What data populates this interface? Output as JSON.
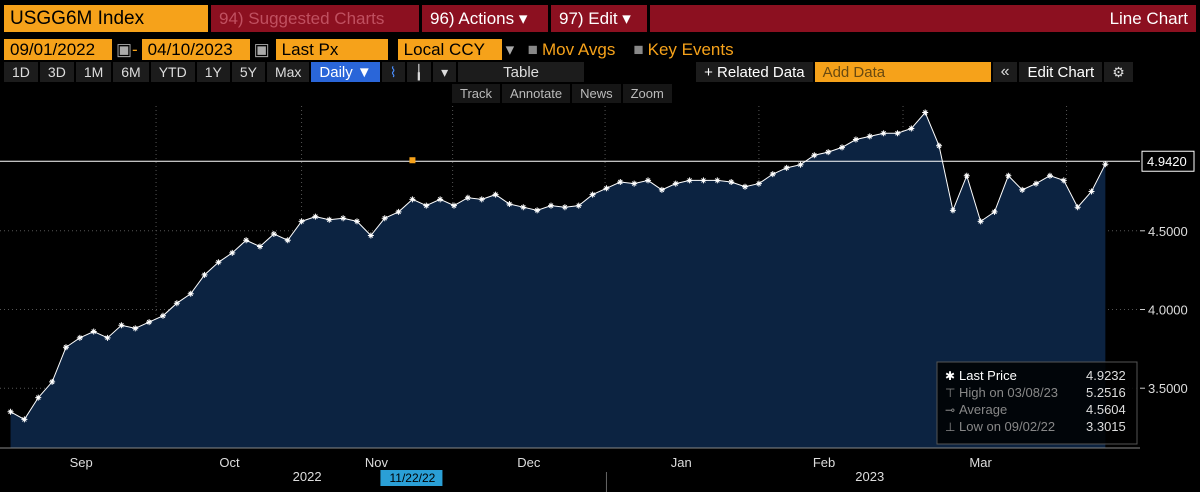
{
  "toolbar": {
    "ticker": "USGG6M Index",
    "menus": [
      "94) Suggested Charts",
      "96) Actions ▾",
      "97) Edit ▾"
    ],
    "view": "Line Chart",
    "start": "09/01/2022",
    "end": "04/10/2023",
    "field": "Last Px",
    "currency": "Local CCY",
    "options": [
      "Mov Avgs",
      "Key Events"
    ],
    "ranges": [
      "1D",
      "3D",
      "1M",
      "6M",
      "YTD",
      "1Y",
      "5Y",
      "Max"
    ],
    "period": "Daily ▼",
    "table": "Table",
    "related": "+ Related Data",
    "add": "Add Data",
    "edit": "Edit Chart",
    "tools": [
      "Track",
      "Annotate",
      "News",
      "Zoom"
    ]
  },
  "chart_data": {
    "type": "line",
    "color": "#ffffff",
    "fill": "#0c2341",
    "series": [
      {
        "name": "Last Price",
        "color": "#ffffff",
        "values": [
          3.35,
          3.3015,
          3.44,
          3.54,
          3.76,
          3.82,
          3.86,
          3.82,
          3.9,
          3.88,
          3.92,
          3.96,
          4.04,
          4.1,
          4.22,
          4.3,
          4.36,
          4.44,
          4.4,
          4.48,
          4.44,
          4.56,
          4.59,
          4.57,
          4.58,
          4.56,
          4.47,
          4.58,
          4.62,
          4.7,
          4.66,
          4.7,
          4.66,
          4.71,
          4.7,
          4.73,
          4.67,
          4.65,
          4.63,
          4.66,
          4.65,
          4.66,
          4.73,
          4.77,
          4.81,
          4.8,
          4.82,
          4.76,
          4.8,
          4.82,
          4.82,
          4.82,
          4.81,
          4.78,
          4.8,
          4.86,
          4.9,
          4.92,
          4.98,
          5.0,
          5.03,
          5.08,
          5.1,
          5.12,
          5.12,
          5.15,
          5.2516,
          5.04,
          4.63,
          4.85,
          4.56,
          4.62,
          4.85,
          4.76,
          4.8,
          4.85,
          4.82,
          4.65,
          4.75,
          4.9232
        ]
      }
    ],
    "ylim": [
      3.12,
      5.42
    ],
    "yticks": [
      {
        "value": 3.5,
        "label": "3.5000"
      },
      {
        "value": 4,
        "label": "4.0000"
      },
      {
        "value": 4.5,
        "label": "4.5000"
      }
    ],
    "xlim": [
      -0.4,
      81.5
    ],
    "xticks": [
      {
        "value": 5.1,
        "label": "Sep"
      },
      {
        "value": 15.8,
        "label": "Oct"
      },
      {
        "value": 26.4,
        "label": "Nov"
      },
      {
        "value": 37.4,
        "label": "Dec"
      },
      {
        "value": 48.4,
        "label": "Jan"
      },
      {
        "value": 58.7,
        "label": "Feb"
      },
      {
        "value": 70,
        "label": "Mar"
      }
    ],
    "xgrid": [
      10.5,
      21,
      31.9,
      42.9,
      54,
      64.4,
      76.2
    ],
    "year_ticks": [
      {
        "value": 21.4,
        "label": "2022"
      },
      {
        "value": 62,
        "label": "2023"
      }
    ],
    "year_divider": 43,
    "marker": {
      "value": 29,
      "label": "11/22/22"
    },
    "price_line": {
      "value": 4.942,
      "label": "4.9420"
    },
    "stats": [
      {
        "label": "Last Price",
        "value": 4.9232
      },
      {
        "label": "High on 03/08/23",
        "value": 5.2516
      },
      {
        "label": "Average",
        "value": 4.5604
      },
      {
        "label": "Low on 09/02/22",
        "value": 3.3015
      }
    ]
  }
}
